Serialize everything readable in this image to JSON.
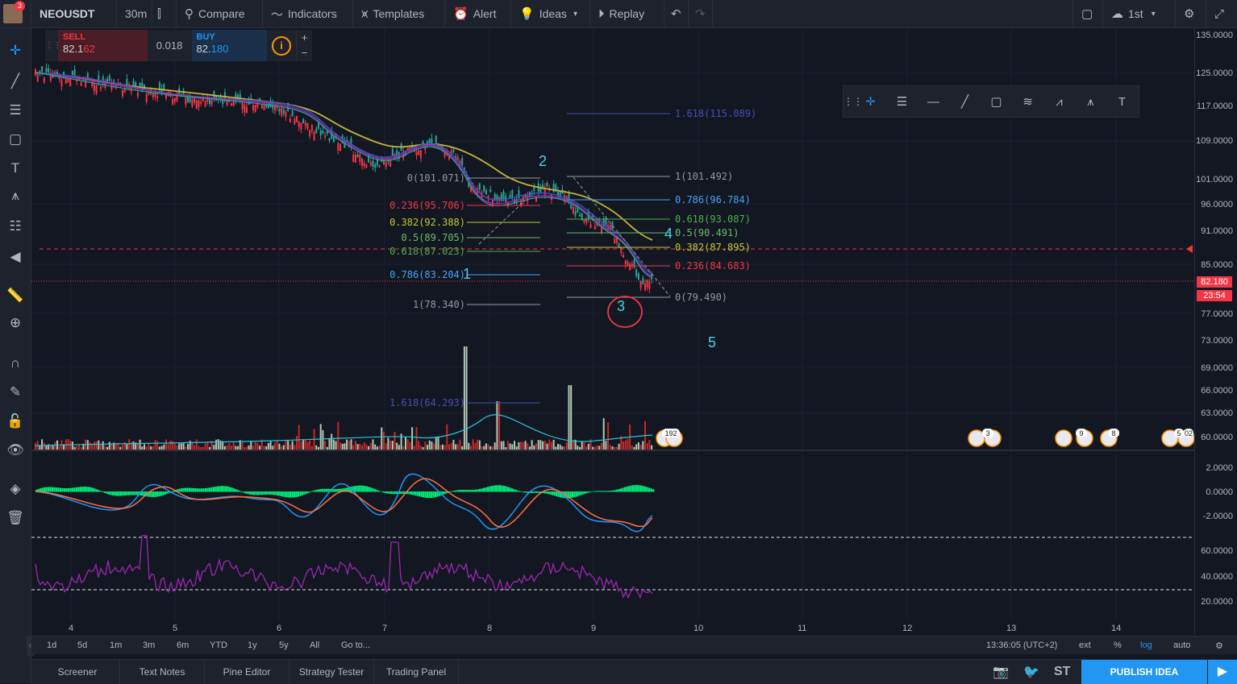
{
  "toolbar": {
    "avatar_badge": "3",
    "symbol": "NEOUSDT",
    "interval": "30m",
    "compare": "Compare",
    "indicators": "Indicators",
    "templates": "Templates",
    "alert": "Alert",
    "ideas": "Ideas",
    "replay": "Replay",
    "layout_name": "1st"
  },
  "trade": {
    "sell_label": "SELL",
    "sell_price_main": "82.1",
    "sell_price_tail": "62",
    "spread": "0.018",
    "buy_label": "BUY",
    "buy_price_main": "82.",
    "buy_price_tail": "180",
    "info": "i",
    "plus": "+",
    "minus": "−"
  },
  "price_scale": {
    "ticks": [
      "135.0000",
      "125.0000",
      "117.0000",
      "109.0000",
      "101.0000",
      "96.0000",
      "91.0000",
      "85.0000",
      "77.0000",
      "73.0000",
      "69.0000",
      "66.0000",
      "63.0000",
      "60.0000"
    ],
    "macd_ticks": [
      "2.0000",
      "0.0000",
      "-2.0000"
    ],
    "rsi_ticks": [
      "60.0000",
      "40.0000",
      "20.0000"
    ],
    "last_price": "82.180",
    "countdown": "23:54"
  },
  "fib_left": [
    {
      "label": "0(101.071)",
      "color": "#9598a1"
    },
    {
      "label": "0.236(95.706)",
      "color": "#f23645"
    },
    {
      "label": "0.382(92.388)",
      "color": "#c0ca33"
    },
    {
      "label": "0.5(89.705)",
      "color": "#66bb6a"
    },
    {
      "label": "0.618(87.023)",
      "color": "#4caf50"
    },
    {
      "label": "0.786(83.204)",
      "color": "#42a5f5"
    },
    {
      "label": "1(78.340)",
      "color": "#9598a1"
    },
    {
      "label": "1.618(64.293)",
      "color": "#3f51b5"
    }
  ],
  "fib_right": [
    {
      "label": "1.618(115.089)",
      "color": "#3f51b5"
    },
    {
      "label": "1(101.492)",
      "color": "#9598a1"
    },
    {
      "label": "0.786(96.784)",
      "color": "#42a5f5"
    },
    {
      "label": "0.618(93.087)",
      "color": "#4caf50"
    },
    {
      "label": "0.5(90.491)",
      "color": "#66bb6a"
    },
    {
      "label": "0.382(87.895)",
      "color": "#c0ca33"
    },
    {
      "label": "0.236(84.683)",
      "color": "#f23645"
    },
    {
      "label": "0(79.490)",
      "color": "#9598a1"
    }
  ],
  "waves": [
    "1",
    "2",
    "3",
    "4",
    "5"
  ],
  "event_badges": [
    "192",
    "3",
    "9",
    "8",
    "5",
    "02"
  ],
  "time_axis": [
    "4",
    "5",
    "6",
    "7",
    "8",
    "9",
    "10",
    "11",
    "12",
    "13",
    "14"
  ],
  "ranges": [
    "1d",
    "5d",
    "1m",
    "3m",
    "6m",
    "YTD",
    "1y",
    "5y",
    "All",
    "Go to..."
  ],
  "status": {
    "clock": "13:36:05 (UTC+2)",
    "ext": "ext",
    "percent": "%",
    "log": "log",
    "auto": "auto"
  },
  "bottom_tabs": [
    "Screener",
    "Text Notes",
    "Pine Editor",
    "Strategy Tester",
    "Trading Panel"
  ],
  "bottom_right": {
    "st": "ST",
    "publish": "PUBLISH IDEA"
  },
  "colors": {
    "accent": "#2196f3",
    "down": "#f23645",
    "up": "#26a69a",
    "macd_hist": "#00e676",
    "rsi": "#9c27b0"
  }
}
